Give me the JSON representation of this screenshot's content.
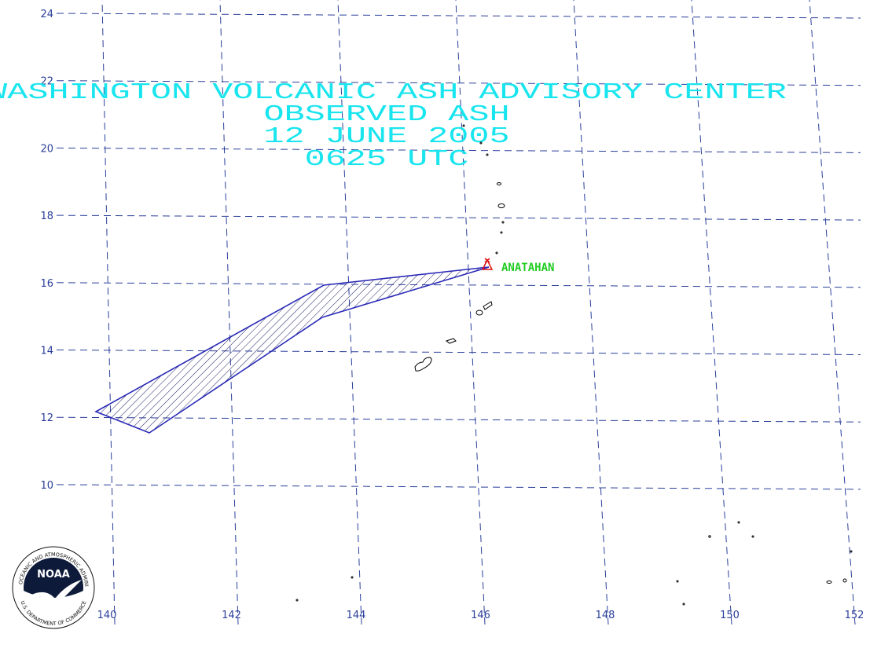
{
  "title_lines": [
    "WASHINGTON VOLCANIC ASH ADVISORY CENTER",
    "OBSERVED ASH",
    "12 JUNE 2005",
    "0625 UTC"
  ],
  "latitude_labels": [
    24,
    22,
    20,
    18,
    16,
    14,
    12,
    10
  ],
  "longitude_labels": [
    140,
    142,
    144,
    146,
    148,
    150,
    152
  ],
  "volcano": {
    "label": "ANATAHAN"
  },
  "logo": {
    "name": "NOAA",
    "ring_top": "NATIONAL OCEANIC AND ATMOSPHERIC ADMINISTRATION",
    "ring_bottom": "U.S. DEPARTMENT OF COMMERCE"
  }
}
